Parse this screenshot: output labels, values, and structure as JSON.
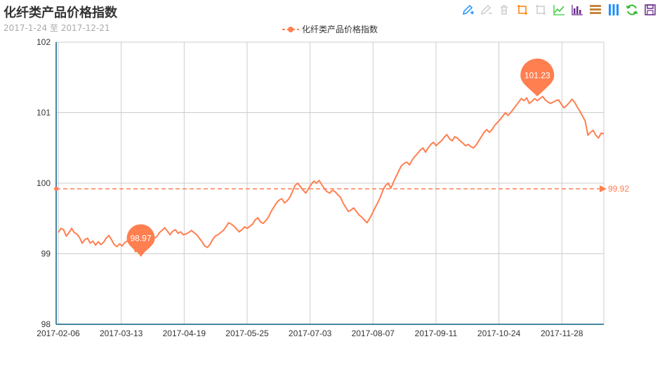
{
  "title": "化纤类产品价格指数",
  "subtitle": "2017-1-24 至 2017-12-21",
  "toolbox": {
    "icons": [
      "mark-icon",
      "mark-undo-icon",
      "mark-clear-icon",
      "data-zoom-icon",
      "data-zoom-reset-icon",
      "line-chart-icon",
      "bar-chart-icon",
      "stack-icon",
      "tiled-icon",
      "restore-icon",
      "save-image-icon"
    ]
  },
  "colors": {
    "series": "#ff7f50",
    "axis": "#48869f",
    "grid": "#cccccc",
    "text": "#333333"
  },
  "chart_data": {
    "type": "line",
    "title": "化纤类产品价格指数",
    "subtitle": "2017-1-24 至 2017-12-21",
    "legend": [
      "化纤类产品价格指数"
    ],
    "legend_position": "top-center",
    "grid": true,
    "x_ticks": [
      "2017-02-06",
      "2017-03-13",
      "2017-04-19",
      "2017-05-25",
      "2017-07-03",
      "2017-08-07",
      "2017-09-11",
      "2017-10-24",
      "2017-11-28"
    ],
    "y_ticks": [
      "98",
      "99",
      "100",
      "101",
      "102"
    ],
    "ylim": [
      98,
      102
    ],
    "series": [
      {
        "name": "化纤类产品价格指数",
        "values": [
          99.3,
          99.36,
          99.34,
          99.25,
          99.3,
          99.36,
          99.3,
          99.28,
          99.23,
          99.15,
          99.2,
          99.22,
          99.15,
          99.18,
          99.12,
          99.17,
          99.13,
          99.16,
          99.22,
          99.26,
          99.2,
          99.13,
          99.1,
          99.14,
          99.11,
          99.16,
          99.18,
          99.2,
          99.13,
          99.03,
          99.05,
          98.97,
          99.02,
          99.08,
          99.12,
          99.18,
          99.22,
          99.24,
          99.3,
          99.33,
          99.37,
          99.32,
          99.27,
          99.32,
          99.34,
          99.29,
          99.31,
          99.27,
          99.28,
          99.3,
          99.33,
          99.3,
          99.27,
          99.22,
          99.17,
          99.11,
          99.09,
          99.13,
          99.2,
          99.25,
          99.27,
          99.3,
          99.33,
          99.38,
          99.44,
          99.42,
          99.39,
          99.35,
          99.31,
          99.34,
          99.38,
          99.36,
          99.39,
          99.42,
          99.48,
          99.51,
          99.45,
          99.43,
          99.47,
          99.52,
          99.6,
          99.66,
          99.72,
          99.76,
          99.78,
          99.72,
          99.75,
          99.8,
          99.88,
          99.97,
          100.0,
          99.95,
          99.9,
          99.86,
          99.92,
          99.98,
          100.03,
          100.0,
          100.04,
          99.98,
          99.92,
          99.88,
          99.86,
          99.9,
          99.88,
          99.84,
          99.8,
          99.72,
          99.66,
          99.6,
          99.62,
          99.65,
          99.6,
          99.55,
          99.52,
          99.48,
          99.44,
          99.5,
          99.57,
          99.65,
          99.72,
          99.8,
          99.9,
          99.97,
          100.0,
          99.93,
          100.02,
          100.1,
          100.18,
          100.25,
          100.28,
          100.3,
          100.26,
          100.33,
          100.38,
          100.42,
          100.47,
          100.5,
          100.44,
          100.5,
          100.55,
          100.58,
          100.53,
          100.57,
          100.6,
          100.65,
          100.69,
          100.63,
          100.6,
          100.66,
          100.64,
          100.6,
          100.57,
          100.53,
          100.55,
          100.52,
          100.5,
          100.54,
          100.6,
          100.66,
          100.72,
          100.76,
          100.72,
          100.76,
          100.82,
          100.86,
          100.9,
          100.95,
          101.0,
          100.96,
          101.0,
          101.05,
          101.1,
          101.15,
          101.2,
          101.17,
          101.21,
          101.13,
          101.16,
          101.2,
          101.17,
          101.2,
          101.23,
          101.18,
          101.15,
          101.13,
          101.15,
          101.17,
          101.18,
          101.12,
          101.07,
          101.1,
          101.14,
          101.19,
          101.15,
          101.08,
          101.02,
          100.95,
          100.88,
          100.68,
          100.72,
          100.75,
          100.68,
          100.64,
          100.71,
          100.7
        ]
      }
    ],
    "markpoints": [
      {
        "type": "min",
        "label": "98.97",
        "value": 98.97,
        "index": 31
      },
      {
        "type": "max",
        "label": "101.23",
        "value": 101.23,
        "index": 180
      }
    ],
    "markline": {
      "type": "average",
      "label": "99.92",
      "value": 99.92
    }
  }
}
